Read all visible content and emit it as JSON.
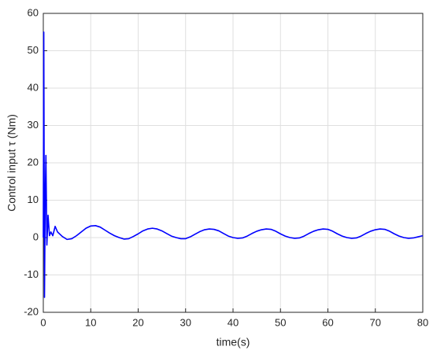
{
  "chart_data": {
    "type": "line",
    "xlabel": "time(s)",
    "ylabel": "Control input τ (Nm)",
    "x": [
      0,
      0.1,
      0.25,
      0.4,
      0.55,
      0.75,
      1.0,
      1.3,
      1.6,
      2.0,
      2.5,
      3.0,
      4,
      5,
      6,
      7,
      8,
      9,
      10,
      11,
      12,
      13,
      14,
      15,
      16,
      17,
      18,
      19,
      20,
      21,
      22,
      23,
      24,
      25,
      26,
      27,
      28,
      29,
      30,
      31,
      32,
      33,
      34,
      35,
      36,
      37,
      38,
      39,
      40,
      41,
      42,
      43,
      44,
      45,
      46,
      47,
      48,
      49,
      50,
      51,
      52,
      53,
      54,
      55,
      56,
      57,
      58,
      59,
      60,
      61,
      62,
      63,
      64,
      65,
      66,
      67,
      68,
      69,
      70,
      71,
      72,
      73,
      74,
      75,
      76,
      77,
      78,
      79,
      80
    ],
    "series": [
      {
        "color": "#0000ff",
        "values": [
          0,
          55,
          -16,
          10,
          22,
          -2,
          6,
          0.5,
          1.5,
          0.5,
          3,
          1.5,
          0.3,
          -0.5,
          -0.3,
          0.5,
          1.5,
          2.5,
          3.1,
          3.2,
          2.8,
          2,
          1.2,
          0.5,
          0,
          -0.4,
          -0.3,
          0.3,
          1,
          1.8,
          2.3,
          2.5,
          2.3,
          1.8,
          1.1,
          0.4,
          0,
          -0.3,
          -0.3,
          0.2,
          0.9,
          1.6,
          2.1,
          2.3,
          2.2,
          1.8,
          1.1,
          0.4,
          0,
          -0.2,
          -0.1,
          0.4,
          1.1,
          1.7,
          2.1,
          2.3,
          2.2,
          1.7,
          1.0,
          0.4,
          0,
          -0.2,
          -0.1,
          0.4,
          1.1,
          1.7,
          2.1,
          2.3,
          2.2,
          1.7,
          1.0,
          0.4,
          0,
          -0.2,
          -0.1,
          0.4,
          1.1,
          1.7,
          2.1,
          2.3,
          2.2,
          1.7,
          1.0,
          0.4,
          0,
          -0.2,
          -0.1,
          0.2,
          0.5
        ]
      }
    ],
    "xlim": [
      0,
      80
    ],
    "xticks": [
      0,
      10,
      20,
      30,
      40,
      50,
      60,
      70,
      80
    ],
    "ylim": [
      -20,
      60
    ],
    "yticks": [
      -20,
      -10,
      0,
      10,
      20,
      30,
      40,
      50,
      60
    ],
    "grid": true
  }
}
